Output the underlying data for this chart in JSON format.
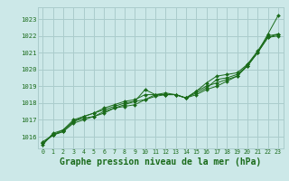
{
  "background_color": "#cce8e8",
  "grid_color": "#aacccc",
  "line_color": "#1a6b1a",
  "marker_color": "#1a6b1a",
  "xlabel": "Graphe pression niveau de la mer (hPa)",
  "xlabel_fontsize": 7.0,
  "xlim": [
    -0.5,
    23.5
  ],
  "ylim": [
    1015.3,
    1023.7
  ],
  "yticks": [
    1016,
    1017,
    1018,
    1019,
    1020,
    1021,
    1022,
    1023
  ],
  "xticks": [
    0,
    1,
    2,
    3,
    4,
    5,
    6,
    7,
    8,
    9,
    10,
    11,
    12,
    13,
    14,
    15,
    16,
    17,
    18,
    19,
    20,
    21,
    22,
    23
  ],
  "series": [
    [
      1015.6,
      1016.1,
      1016.3,
      1016.8,
      1017.0,
      1017.2,
      1017.5,
      1017.7,
      1017.8,
      1017.9,
      1018.2,
      1018.5,
      1018.5,
      1018.5,
      1018.3,
      1018.5,
      1018.8,
      1019.0,
      1019.3,
      1019.6,
      1020.2,
      1021.0,
      1022.1,
      1023.2
    ],
    [
      1015.7,
      1016.1,
      1016.4,
      1016.9,
      1017.2,
      1017.4,
      1017.6,
      1017.8,
      1018.0,
      1018.1,
      1018.2,
      1018.4,
      1018.5,
      1018.5,
      1018.3,
      1018.7,
      1019.0,
      1019.2,
      1019.4,
      1019.6,
      1020.3,
      1021.0,
      1021.9,
      1022.0
    ],
    [
      1015.6,
      1016.1,
      1016.3,
      1016.9,
      1017.1,
      1017.2,
      1017.4,
      1017.7,
      1017.9,
      1018.1,
      1018.8,
      1018.5,
      1018.5,
      1018.5,
      1018.3,
      1018.6,
      1018.9,
      1019.4,
      1019.5,
      1019.7,
      1020.2,
      1021.0,
      1021.9,
      1022.1
    ],
    [
      1015.5,
      1016.2,
      1016.4,
      1017.0,
      1017.2,
      1017.4,
      1017.7,
      1017.9,
      1018.1,
      1018.2,
      1018.5,
      1018.5,
      1018.6,
      1018.5,
      1018.3,
      1018.7,
      1019.2,
      1019.6,
      1019.7,
      1019.8,
      1020.3,
      1021.1,
      1022.0,
      1022.1
    ]
  ]
}
